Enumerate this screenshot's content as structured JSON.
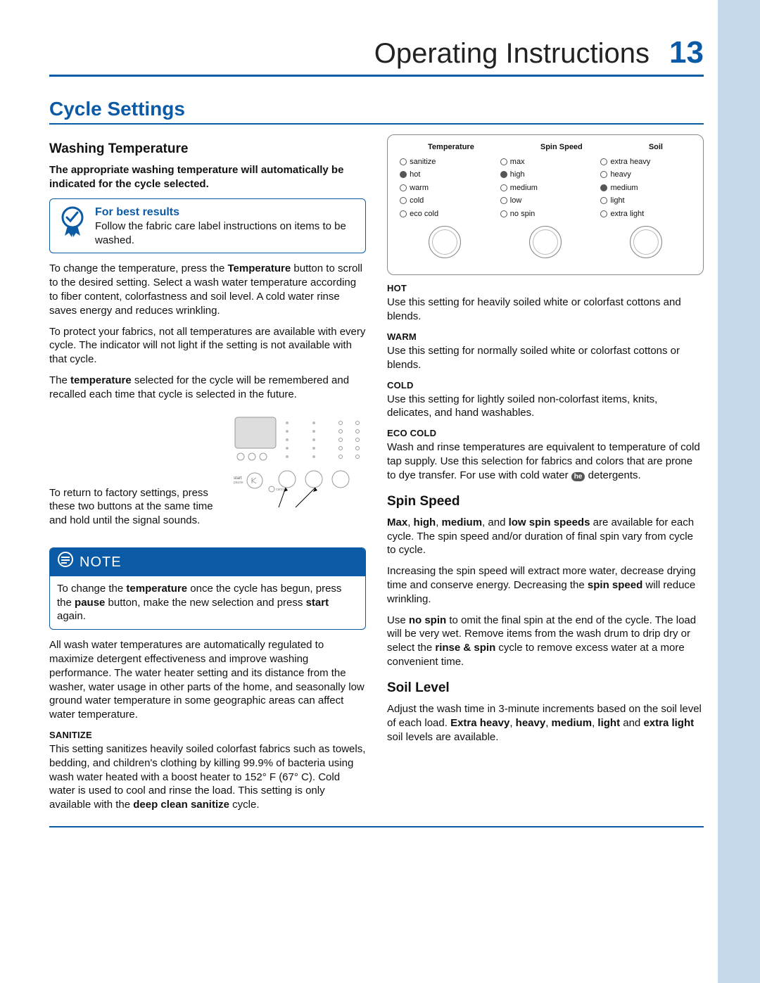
{
  "header": {
    "title": "Operating Instructions",
    "page_number": "13"
  },
  "section_title": "Cycle Settings",
  "left": {
    "washing_temp_heading": "Washing Temperature",
    "washing_temp_bold": "The appropriate washing temperature will automatically be indicated for the cycle selected.",
    "tip_title": "For best results",
    "tip_text": "Follow the fabric care label instructions on items to be washed.",
    "factory_reset": "To return to factory settings, press these two buttons at the same time and hold until the signal sounds.",
    "note_label": "NOTE",
    "sanitize_label": "SANITIZE"
  },
  "right": {
    "panel": {
      "headers": [
        "Temperature",
        "Spin Speed",
        "Soil"
      ],
      "temperature": [
        "sanitize",
        "hot",
        "warm",
        "cold",
        "eco cold"
      ],
      "spin": [
        "max",
        "high",
        "medium",
        "low",
        "no spin"
      ],
      "soil": [
        "extra heavy",
        "heavy",
        "medium",
        "light",
        "extra light"
      ],
      "selected_temperature": "hot",
      "selected_spin": "high",
      "selected_soil": "medium"
    },
    "hot_label": "HOT",
    "hot_text": "Use this setting for heavily soiled white or colorfast cottons and blends.",
    "warm_label": "WARM",
    "warm_text": "Use this setting for normally soiled white or colorfast cottons or blends.",
    "cold_label": "COLD",
    "cold_text": "Use this setting for lightly soiled non-colorfast items, knits, delicates, and hand washables.",
    "eco_label": "ECO COLD",
    "spin_heading": "Spin Speed",
    "soil_heading": "Soil Level"
  },
  "colors": {
    "accent": "#0b5aa5",
    "sidebar": "#c5d8ec"
  }
}
